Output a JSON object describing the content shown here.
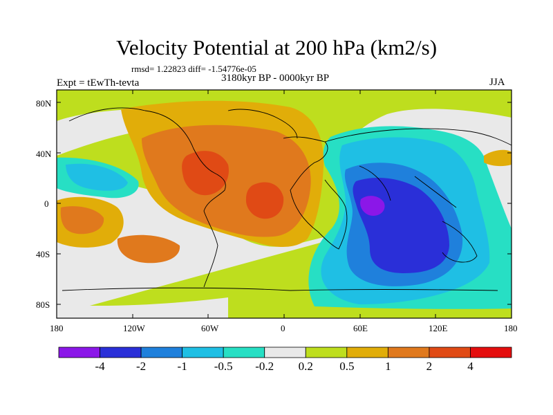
{
  "title": "Velocity Potential at 200 hPa (km2/s)",
  "stats": "rmsd= 1.22823 diff= -1.54776e-05",
  "experiment": "Expt = tEwTh-tevta",
  "period": "3180kyr BP - 0000kyr BP",
  "season": "JJA",
  "lat_ticks": [
    "80N",
    "40N",
    "0",
    "40S",
    "80S"
  ],
  "lon_ticks": [
    "180",
    "120W",
    "60W",
    "0",
    "60E",
    "120E",
    "180"
  ],
  "colorbar": {
    "labels": [
      "-4",
      "-2",
      "-1",
      "-0.5",
      "-0.2",
      "0.2",
      "0.5",
      "1",
      "2",
      "4"
    ],
    "colors": [
      "#8b17e8",
      "#2a2fd8",
      "#1f80dc",
      "#1fbfe4",
      "#27dfc4",
      "#e9e9e9",
      "#bede1e",
      "#e1ad09",
      "#e0791d",
      "#e04a15",
      "#e40e0e"
    ]
  }
}
